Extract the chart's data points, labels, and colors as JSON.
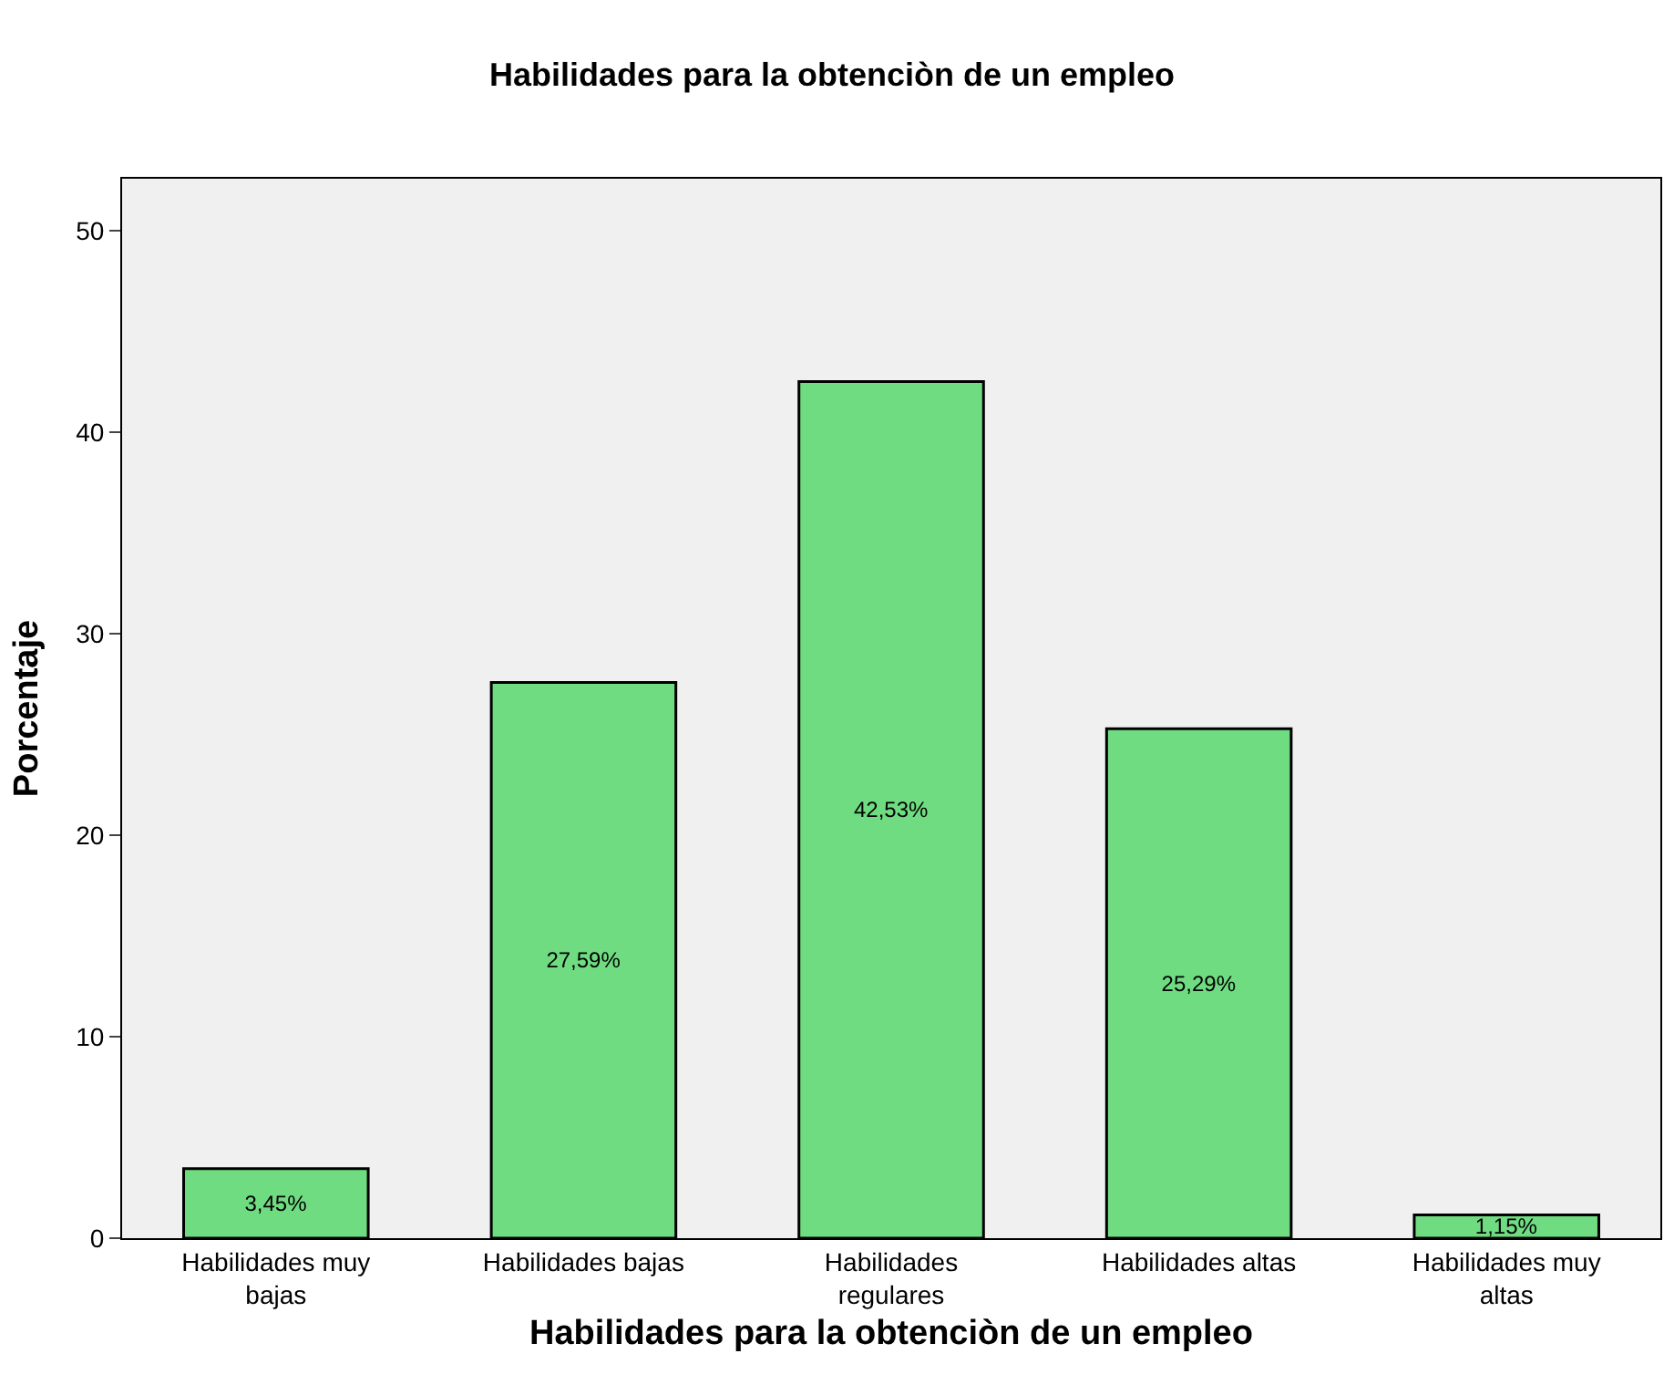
{
  "chart_data": {
    "type": "bar",
    "title": "Habilidades para la obtenciòn de un empleo",
    "xlabel": "Habilidades para la obtenciòn de un empleo",
    "ylabel": "Porcentaje",
    "categories": [
      "Habilidades muy bajas",
      "Habilidades bajas",
      "Habilidades regulares",
      "Habilidades altas",
      "Habilidades muy altas"
    ],
    "values": [
      3.45,
      27.59,
      42.53,
      25.29,
      1.15
    ],
    "color": "#70dc82",
    "value_labels": [
      "3,45%",
      "27,59%",
      "42,53%",
      "25,29%",
      "1,15%"
    ],
    "ylim": [
      0,
      52.6
    ],
    "yticks": [
      0,
      10,
      20,
      30,
      40,
      50
    ],
    "grid": false
  }
}
